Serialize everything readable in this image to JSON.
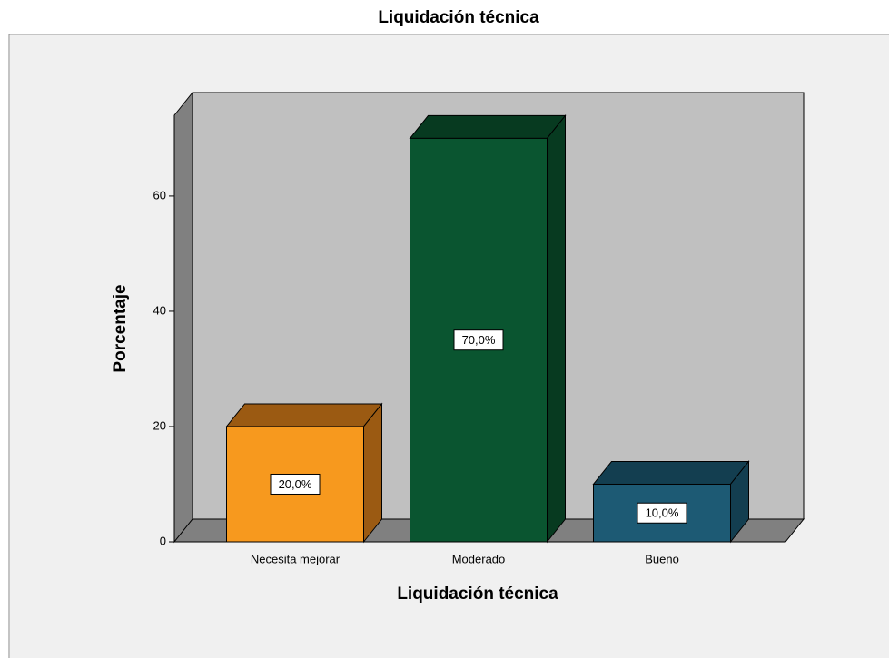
{
  "chart_data": {
    "type": "bar3d",
    "title": "Liquidación técnica",
    "xlabel": "Liquidación técnica",
    "ylabel": "Porcentaje",
    "categories": [
      "Necesita mejorar",
      "Moderado",
      "Bueno"
    ],
    "values": [
      20,
      70,
      10
    ],
    "value_labels": [
      "20,0%",
      "70,0%",
      "10,0%"
    ],
    "colors": [
      "#f7991e",
      "#0a5530",
      "#1d5a74"
    ],
    "shade_colors": [
      "#9b5a12",
      "#073a20",
      "#133e50"
    ],
    "ylim": [
      0,
      74
    ],
    "yticks": [
      0,
      20,
      40,
      60
    ]
  }
}
